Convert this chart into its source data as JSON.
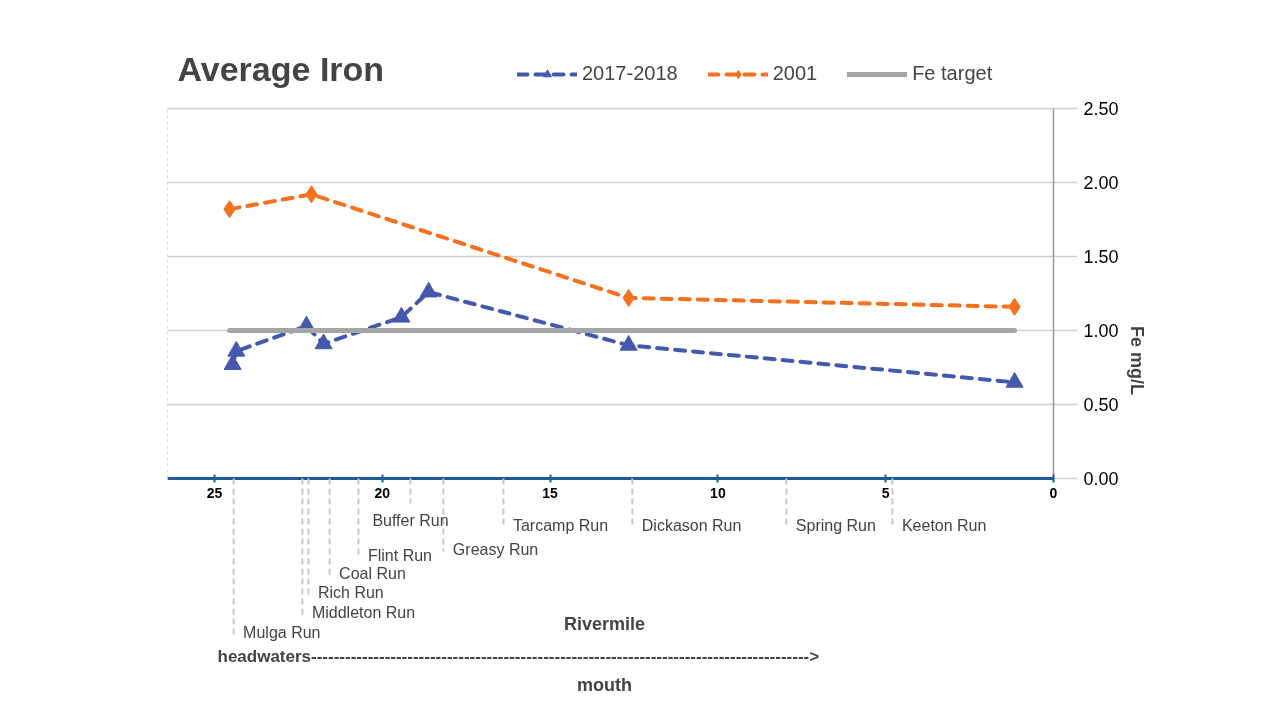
{
  "chart_data": {
    "type": "line",
    "title": "Average Iron",
    "ylabel": "Fe mg/L",
    "xlim": [
      26.4,
      0
    ],
    "xticks": [
      25,
      20,
      15,
      10,
      5,
      0
    ],
    "ylim": [
      0,
      2.5
    ],
    "yticks": [
      {
        "value": 0,
        "label": "0.00"
      },
      {
        "value": 0.5,
        "label": "0.50"
      },
      {
        "value": 1,
        "label": "1.00"
      },
      {
        "value": 1.5,
        "label": "1.50"
      },
      {
        "value": 2,
        "label": "2.00"
      },
      {
        "value": 2.5,
        "label": "2.50"
      }
    ],
    "grid": "y",
    "legend": "top right",
    "series": [
      {
        "name": "2017-2018",
        "color": "#4459ae",
        "marker": "triangle",
        "line_style": "dashed",
        "x": [
          24.46,
          24.35,
          22.26,
          21.75,
          19.43,
          18.62,
          12.66,
          1.16
        ],
        "values": [
          0.77,
          0.86,
          1.03,
          0.91,
          1.09,
          1.26,
          0.9,
          0.65
        ]
      },
      {
        "name": "2001",
        "color": "#f4711f",
        "marker": "diamond",
        "line_style": "dashed",
        "x": [
          24.55,
          22.11,
          12.66,
          1.16
        ],
        "values": [
          1.82,
          1.92,
          1.22,
          1.16
        ]
      },
      {
        "name": "Fe target",
        "color": "#a5a5a5",
        "marker": "none",
        "line_style": "solid",
        "x": [
          24.55,
          1.16
        ],
        "values": [
          1,
          1
        ]
      }
    ],
    "ref_lines": [
      {
        "axis": "x",
        "value": 24.43,
        "label": "Mulga Run",
        "color": "#c8c8c8",
        "line_style": "dashed"
      },
      {
        "axis": "x",
        "value": 22.38,
        "label": "Middleton Run",
        "color": "#c8c8c8",
        "line_style": "dashed"
      },
      {
        "axis": "x",
        "value": 22.2,
        "label": "Rich Run",
        "color": "#c8c8c8",
        "line_style": "dashed"
      },
      {
        "axis": "x",
        "value": 21.57,
        "label": "Coal Run",
        "color": "#c8c8c8",
        "line_style": "dashed"
      },
      {
        "axis": "x",
        "value": 20.71,
        "label": "Flint Run",
        "color": "#c8c8c8",
        "line_style": "dashed"
      },
      {
        "axis": "x",
        "value": 19.16,
        "label": "Buffer Run",
        "color": "#c8c8c8",
        "line_style": "dashed"
      },
      {
        "axis": "x",
        "value": 18.18,
        "label": "Greasy Run",
        "color": "#c8c8c8",
        "line_style": "dashed"
      },
      {
        "axis": "x",
        "value": 16.39,
        "label": "Tarcamp Run",
        "color": "#c8c8c8",
        "line_style": "dashed"
      },
      {
        "axis": "x",
        "value": 12.55,
        "label": "Dickason Run",
        "color": "#c8c8c8",
        "line_style": "dashed"
      },
      {
        "axis": "x",
        "value": 7.96,
        "label": "Spring Run",
        "color": "#c8c8c8",
        "line_style": "dashed"
      },
      {
        "axis": "x",
        "value": 4.8,
        "label": "Keeton Run",
        "color": "#c8c8c8",
        "line_style": "dashed"
      }
    ],
    "annotations": [
      "Rivermile",
      "headwaters---------------------------------------------------------------------------------------->",
      "mouth"
    ]
  }
}
